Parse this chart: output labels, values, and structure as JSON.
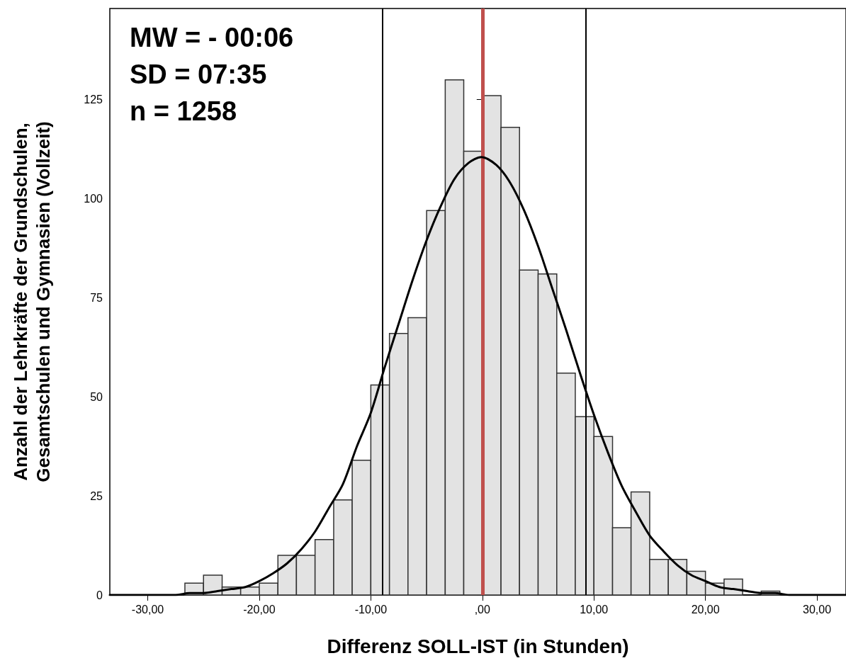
{
  "chart_data": {
    "type": "histogram",
    "xlabel": "Differenz SOLL-IST (in Stunden)",
    "ylabel": "Anzahl der Lehrkräfte der Grundschulen,\nGesamtschulen und Gymnasien (Vollzeit)",
    "annotations": [
      "MW = - 00:06",
      "SD = 07:35",
      "n = 1258"
    ],
    "bins": [
      -26.67,
      -25,
      -23.33,
      -21.67,
      -20,
      -18.33,
      -16.67,
      -15,
      -13.33,
      -11.67,
      -10,
      -8.33,
      -6.67,
      -5,
      -3.33,
      -1.67,
      0,
      1.67,
      3.33,
      5,
      6.67,
      8.33,
      10,
      11.67,
      13.33,
      15,
      16.67,
      18.33,
      20,
      21.67,
      23.33,
      25,
      26.67
    ],
    "values": [
      3,
      5,
      2,
      2,
      3,
      10,
      10,
      14,
      24,
      34,
      53,
      66,
      70,
      97,
      130,
      112,
      126,
      118,
      82,
      81,
      56,
      45,
      40,
      17,
      26,
      9,
      9,
      6,
      3,
      4,
      0,
      1
    ],
    "color": "#e3e3e3",
    "series": [
      {
        "type": "line",
        "color": "#000000",
        "x": [
          -33.4,
          -30,
          -27.5,
          -26.25,
          -25,
          -23.75,
          -22.5,
          -21.25,
          -20,
          -18.75,
          -17.5,
          -16.25,
          -15,
          -13.75,
          -12.5,
          -11.25,
          -10,
          -8.75,
          -7.5,
          -6.25,
          -5,
          -3.75,
          -2.5,
          -1.25,
          -0.1,
          1.25,
          2.5,
          3.75,
          5,
          6.25,
          7.5,
          8.75,
          10,
          11.25,
          12.5,
          13.75,
          15,
          16.25,
          17.5,
          18.75,
          20,
          21.25,
          22.5,
          23.75,
          25,
          26.25,
          27.5,
          30,
          32.6
        ],
        "values": [
          0,
          0,
          0,
          0.5,
          0.5,
          1,
          1.5,
          2,
          3.5,
          5.5,
          8,
          11.5,
          16,
          22,
          28,
          37.5,
          46,
          57.5,
          68.5,
          79.5,
          89.5,
          98,
          105,
          109,
          110.5,
          108.5,
          104,
          97,
          88,
          77.5,
          67,
          56,
          45.5,
          36,
          27.5,
          21,
          15,
          11,
          7.5,
          5,
          3.5,
          2,
          1.5,
          1,
          0.5,
          0.5,
          0,
          0,
          0
        ]
      }
    ],
    "marker": "none",
    "xlim": [
      -33.4,
      32.6
    ],
    "xticks": [
      {
        "value": -30,
        "label": "-30,00"
      },
      {
        "value": -20,
        "label": "-20,00"
      },
      {
        "value": -10,
        "label": "-10,00"
      },
      {
        "value": 0,
        "label": ",00"
      },
      {
        "value": 10,
        "label": "10,00"
      },
      {
        "value": 20,
        "label": "20,00"
      },
      {
        "value": 30,
        "label": "30,00"
      }
    ],
    "ylim": [
      0,
      148
    ],
    "yticks": [
      0,
      25,
      50,
      75,
      100,
      125
    ],
    "ref_lines": [
      {
        "axis": "x",
        "value": -8.93,
        "color": "#000000"
      },
      {
        "axis": "x",
        "value": 9.25,
        "color": "#000000"
      },
      {
        "axis": "x",
        "value": 0,
        "color": "#c0504d"
      }
    ],
    "grid": false
  }
}
